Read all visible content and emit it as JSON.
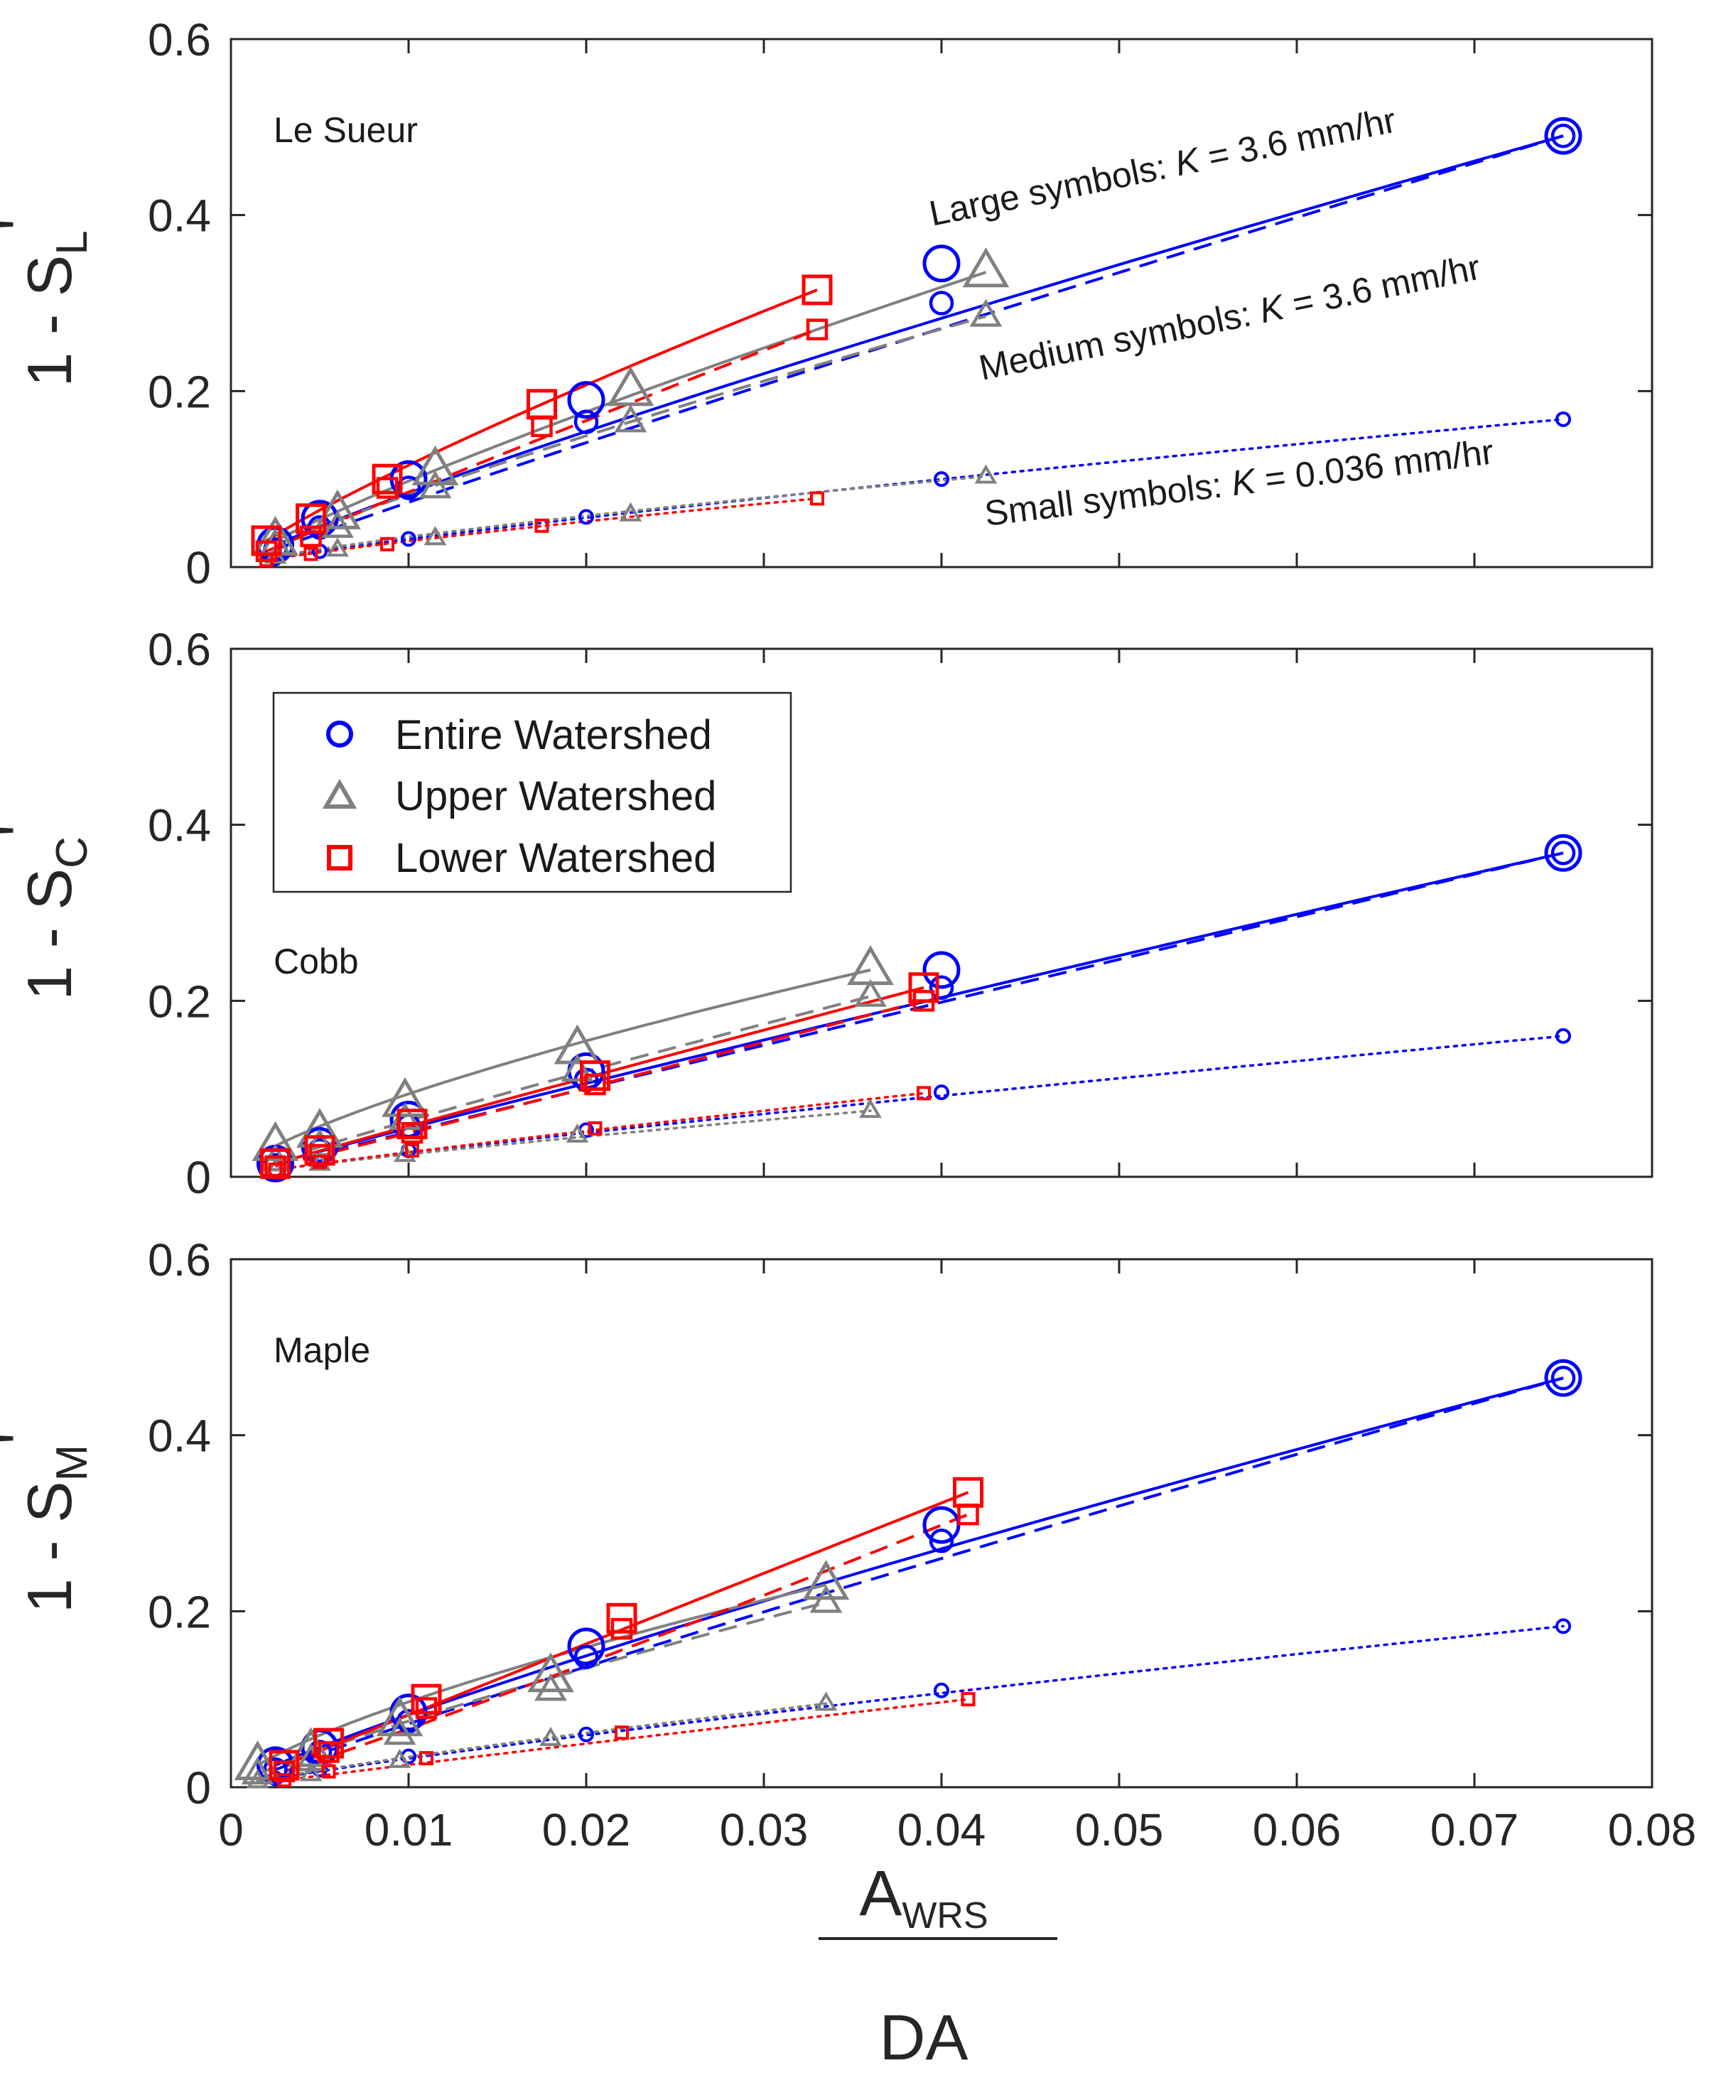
{
  "colors": {
    "entire": "#0000ff",
    "upper": "#808080",
    "lower": "#ff0000",
    "axis": "#262626"
  },
  "xaxis": {
    "ticks": [
      0,
      0.01,
      0.02,
      0.03,
      0.04,
      0.05,
      0.06,
      0.07,
      0.08
    ],
    "tick_labels": [
      "0",
      "0.01",
      "0.02",
      "0.03",
      "0.04",
      "0.05",
      "0.06",
      "0.07",
      "0.08"
    ],
    "label_numerator": "A",
    "label_numerator_sub": "WRS",
    "label_denominator": "DA"
  },
  "legend": {
    "items": [
      {
        "label": "Entire Watershed",
        "marker": "circle",
        "color": "#0000ff"
      },
      {
        "label": "Upper Watershed",
        "marker": "triangle",
        "color": "#808080"
      },
      {
        "label": "Lower Watershed",
        "marker": "square",
        "color": "#ff0000"
      }
    ]
  },
  "annotations": {
    "large": {
      "prefix": "Large symbols: ",
      "k": "K",
      "suffix": " = 3.6 mm/hr"
    },
    "medium": {
      "prefix": "Medium symbols: ",
      "k": "K",
      "suffix": " = 3.6 mm/hr"
    },
    "small": {
      "prefix": "Small symbols: ",
      "k": "K",
      "suffix": " = 0.036 mm/hr"
    }
  },
  "chart_data": [
    {
      "type": "scatter",
      "title": "Le Sueur",
      "ylabel_main": "1 - S",
      "ylabel_sub": "L",
      "ylabel_prime": "'",
      "xlim": [
        0,
        0.08
      ],
      "ylim": [
        0,
        0.6
      ],
      "yticks": [
        0,
        0.2,
        0.4,
        0.6
      ],
      "ytick_labels": [
        "0",
        "0.2",
        "0.4",
        "0.6"
      ],
      "series": [
        {
          "name": "Entire Watershed",
          "group": "entire",
          "size": "large",
          "x": [
            0.0025,
            0.005,
            0.01,
            0.02,
            0.04,
            0.075
          ],
          "y": [
            0.025,
            0.055,
            0.1,
            0.19,
            0.345,
            0.49
          ]
        },
        {
          "name": "Entire Watershed",
          "group": "entire",
          "size": "medium",
          "x": [
            0.0025,
            0.005,
            0.01,
            0.02,
            0.04,
            0.075
          ],
          "y": [
            0.02,
            0.045,
            0.09,
            0.165,
            0.3,
            0.49
          ]
        },
        {
          "name": "Entire Watershed",
          "group": "entire",
          "size": "small",
          "x": [
            0.0025,
            0.005,
            0.01,
            0.02,
            0.04,
            0.075
          ],
          "y": [
            0.01,
            0.018,
            0.032,
            0.057,
            0.1,
            0.168
          ]
        },
        {
          "name": "Upper Watershed",
          "group": "upper",
          "size": "large",
          "x": [
            0.0025,
            0.006,
            0.0115,
            0.0225,
            0.0425
          ],
          "y": [
            0.03,
            0.06,
            0.11,
            0.2,
            0.335
          ]
        },
        {
          "name": "Upper Watershed",
          "group": "upper",
          "size": "medium",
          "x": [
            0.0025,
            0.006,
            0.0115,
            0.0225,
            0.0425
          ],
          "y": [
            0.025,
            0.045,
            0.09,
            0.165,
            0.285
          ]
        },
        {
          "name": "Upper Watershed",
          "group": "upper",
          "size": "small",
          "x": [
            0.0025,
            0.006,
            0.0115,
            0.0225,
            0.0425
          ],
          "y": [
            0.012,
            0.02,
            0.033,
            0.06,
            0.103
          ]
        },
        {
          "name": "Lower Watershed",
          "group": "lower",
          "size": "large",
          "x": [
            0.002,
            0.0045,
            0.0088,
            0.0175,
            0.033
          ],
          "y": [
            0.03,
            0.055,
            0.1,
            0.185,
            0.315
          ]
        },
        {
          "name": "Lower Watershed",
          "group": "lower",
          "size": "medium",
          "x": [
            0.002,
            0.0045,
            0.0088,
            0.0175,
            0.033
          ],
          "y": [
            0.018,
            0.035,
            0.09,
            0.16,
            0.27
          ]
        },
        {
          "name": "Lower Watershed",
          "group": "lower",
          "size": "small",
          "x": [
            0.002,
            0.0045,
            0.0088,
            0.0175,
            0.033
          ],
          "y": [
            0.008,
            0.015,
            0.026,
            0.047,
            0.078
          ]
        }
      ]
    },
    {
      "type": "scatter",
      "title": "Cobb",
      "ylabel_main": "1 - S",
      "ylabel_sub": "C",
      "ylabel_prime": "'",
      "xlim": [
        0,
        0.08
      ],
      "ylim": [
        0,
        0.6
      ],
      "yticks": [
        0,
        0.2,
        0.4,
        0.6
      ],
      "ytick_labels": [
        "0",
        "0.2",
        "0.4",
        "0.6"
      ],
      "series": [
        {
          "name": "Entire Watershed",
          "group": "entire",
          "size": "large",
          "x": [
            0.0025,
            0.005,
            0.01,
            0.02,
            0.04,
            0.075
          ],
          "y": [
            0.015,
            0.035,
            0.065,
            0.12,
            0.235,
            0.368
          ]
        },
        {
          "name": "Entire Watershed",
          "group": "entire",
          "size": "medium",
          "x": [
            0.0025,
            0.005,
            0.01,
            0.02,
            0.04,
            0.075
          ],
          "y": [
            0.013,
            0.03,
            0.058,
            0.11,
            0.215,
            0.368
          ]
        },
        {
          "name": "Entire Watershed",
          "group": "entire",
          "size": "small",
          "x": [
            0.0025,
            0.005,
            0.01,
            0.02,
            0.04,
            0.075
          ],
          "y": [
            0.008,
            0.018,
            0.03,
            0.053,
            0.096,
            0.16
          ]
        },
        {
          "name": "Upper Watershed",
          "group": "upper",
          "size": "large",
          "x": [
            0.0025,
            0.005,
            0.0098,
            0.0195,
            0.036
          ],
          "y": [
            0.035,
            0.05,
            0.085,
            0.145,
            0.235
          ]
        },
        {
          "name": "Upper Watershed",
          "group": "upper",
          "size": "medium",
          "x": [
            0.0025,
            0.005,
            0.0098,
            0.0195,
            0.036
          ],
          "y": [
            0.018,
            0.035,
            0.065,
            0.12,
            0.205
          ]
        },
        {
          "name": "Upper Watershed",
          "group": "upper",
          "size": "small",
          "x": [
            0.0025,
            0.005,
            0.0098,
            0.0195,
            0.036
          ],
          "y": [
            0.008,
            0.015,
            0.025,
            0.047,
            0.075
          ]
        },
        {
          "name": "Lower Watershed",
          "group": "lower",
          "size": "large",
          "x": [
            0.0025,
            0.005,
            0.0102,
            0.0205,
            0.039
          ],
          "y": [
            0.015,
            0.03,
            0.06,
            0.115,
            0.215
          ]
        },
        {
          "name": "Lower Watershed",
          "group": "lower",
          "size": "medium",
          "x": [
            0.0025,
            0.005,
            0.0102,
            0.0205,
            0.039
          ],
          "y": [
            0.012,
            0.025,
            0.05,
            0.105,
            0.2
          ]
        },
        {
          "name": "Lower Watershed",
          "group": "lower",
          "size": "small",
          "x": [
            0.0025,
            0.005,
            0.0102,
            0.0205,
            0.039
          ],
          "y": [
            0.008,
            0.017,
            0.03,
            0.055,
            0.095
          ]
        }
      ]
    },
    {
      "type": "scatter",
      "title": "Maple",
      "ylabel_main": "1 - S",
      "ylabel_sub": "M",
      "ylabel_prime": "'",
      "xlim": [
        0,
        0.08
      ],
      "ylim": [
        0,
        0.6
      ],
      "yticks": [
        0,
        0.2,
        0.4,
        0.6
      ],
      "ytick_labels": [
        "0",
        "0.2",
        "0.4",
        "0.6"
      ],
      "series": [
        {
          "name": "Entire Watershed",
          "group": "entire",
          "size": "large",
          "x": [
            0.0025,
            0.005,
            0.01,
            0.02,
            0.04,
            0.075
          ],
          "y": [
            0.025,
            0.045,
            0.085,
            0.16,
            0.298,
            0.465
          ]
        },
        {
          "name": "Entire Watershed",
          "group": "entire",
          "size": "medium",
          "x": [
            0.0025,
            0.005,
            0.01,
            0.02,
            0.04,
            0.075
          ],
          "y": [
            0.02,
            0.04,
            0.075,
            0.148,
            0.28,
            0.465
          ]
        },
        {
          "name": "Entire Watershed",
          "group": "entire",
          "size": "small",
          "x": [
            0.0025,
            0.005,
            0.01,
            0.02,
            0.04,
            0.075
          ],
          "y": [
            0.01,
            0.02,
            0.035,
            0.06,
            0.11,
            0.183
          ]
        },
        {
          "name": "Upper Watershed",
          "group": "upper",
          "size": "large",
          "x": [
            0.0015,
            0.0045,
            0.0095,
            0.018,
            0.0335
          ],
          "y": [
            0.025,
            0.04,
            0.075,
            0.125,
            0.23
          ]
        },
        {
          "name": "Upper Watershed",
          "group": "upper",
          "size": "medium",
          "x": [
            0.0015,
            0.0045,
            0.0095,
            0.018,
            0.0335
          ],
          "y": [
            0.015,
            0.03,
            0.06,
            0.11,
            0.21
          ]
        },
        {
          "name": "Upper Watershed",
          "group": "upper",
          "size": "small",
          "x": [
            0.0015,
            0.0045,
            0.0095,
            0.018,
            0.0335
          ],
          "y": [
            0.007,
            0.015,
            0.03,
            0.055,
            0.095
          ]
        },
        {
          "name": "Lower Watershed",
          "group": "lower",
          "size": "large",
          "x": [
            0.003,
            0.0055,
            0.011,
            0.022,
            0.0415
          ],
          "y": [
            0.025,
            0.05,
            0.1,
            0.192,
            0.335
          ]
        },
        {
          "name": "Lower Watershed",
          "group": "lower",
          "size": "medium",
          "x": [
            0.003,
            0.0055,
            0.011,
            0.022,
            0.0415
          ],
          "y": [
            0.018,
            0.04,
            0.09,
            0.18,
            0.31
          ]
        },
        {
          "name": "Lower Watershed",
          "group": "lower",
          "size": "small",
          "x": [
            0.003,
            0.0055,
            0.011,
            0.022,
            0.0415
          ],
          "y": [
            0.008,
            0.018,
            0.033,
            0.062,
            0.1
          ]
        }
      ]
    }
  ]
}
